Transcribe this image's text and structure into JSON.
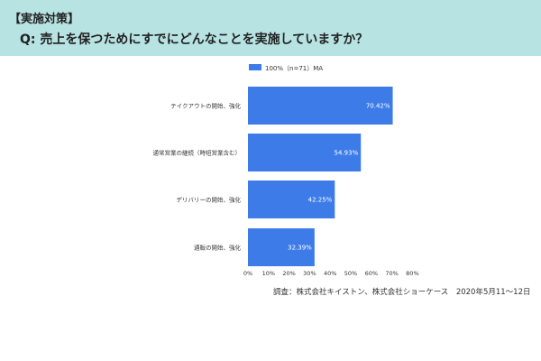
{
  "header": {
    "tag": "【実施対策】",
    "question": "Q: 売上を保つためにすでにどんなことを実施していますか？"
  },
  "colors": {
    "header_bg": "#b8e3e3",
    "bar": "#3d7ce8",
    "bar_label": "#ffffff",
    "axis_text": "#333333"
  },
  "source": "調査：株式会社キイストン、株式会社ショーケース　2020年5月11〜12日",
  "chart_data": {
    "type": "bar",
    "orientation": "horizontal",
    "legend": {
      "position": "top",
      "entries": [
        "100%（n=71）MA"
      ]
    },
    "categories": [
      "テイクアウトの開始、強化",
      "通常営業の継続（時短営業含む）",
      "デリバリーの開始、強化",
      "通販の開始、強化"
    ],
    "series": [
      {
        "name": "100%（n=71）MA",
        "values": [
          70.42,
          54.93,
          42.25,
          32.39
        ],
        "labels": [
          "70.42%",
          "54.93%",
          "42.25%",
          "32.39%"
        ]
      }
    ],
    "xlim": [
      0,
      80
    ],
    "xticks": [
      0,
      10,
      20,
      30,
      40,
      50,
      60,
      70,
      80
    ],
    "xtick_labels": [
      "0%",
      "10%",
      "20%",
      "30%",
      "40%",
      "50%",
      "60%",
      "70%",
      "80%"
    ],
    "grid": false
  }
}
